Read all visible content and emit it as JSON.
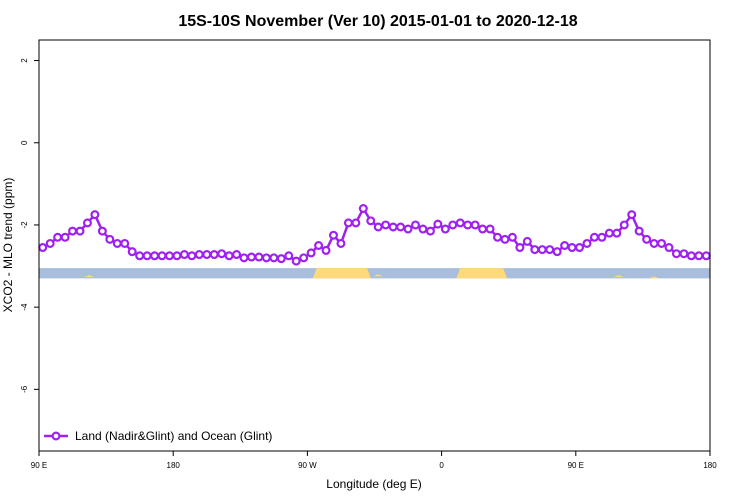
{
  "chart_data": {
    "type": "line",
    "title": "15S-10S November (Ver 10)   2015-01-01 to 2020-12-18",
    "xlabel": "Longitude (deg E)",
    "ylabel": "XCO2 - MLO trend (ppm)",
    "xlim": [
      90,
      450
    ],
    "ylim": [
      -7.5,
      2.5
    ],
    "x_ticks": [
      {
        "value": 90,
        "label": "90 E"
      },
      {
        "value": 162,
        "label": "180"
      },
      {
        "value": 234,
        "label": "90 W"
      },
      {
        "value": 306,
        "label": "0"
      },
      {
        "value": 378,
        "label": "90 E"
      },
      {
        "value": 450,
        "label": "180"
      }
    ],
    "y_ticks": [
      {
        "value": 2,
        "label": "2"
      },
      {
        "value": 0,
        "label": "0"
      },
      {
        "value": -2,
        "label": "-2"
      },
      {
        "value": -4,
        "label": "-4"
      },
      {
        "value": -6,
        "label": "-6"
      }
    ],
    "grid": false,
    "legend_position": "bottom-left",
    "colors": {
      "series": "#a020f0",
      "ocean_band": "#a8bedc",
      "land_band": "#fcd97a"
    },
    "surface_band": {
      "y_top": -3.05,
      "y_bottom": -3.3,
      "land_segments": [
        [
          239,
          266
        ],
        [
          316,
          339
        ]
      ],
      "land_bumps": [
        [
          117,
          -3.22
        ],
        [
          272,
          -3.2
        ],
        [
          401,
          -3.22
        ],
        [
          420,
          -3.25
        ]
      ]
    },
    "series": [
      {
        "name": "Land (Nadir&Glint) and Ocean (Glint)",
        "x": [
          92,
          96,
          100,
          104,
          108,
          112,
          116,
          120,
          124,
          128,
          132,
          136,
          140,
          144,
          148,
          152,
          156,
          160,
          164,
          168,
          172,
          176,
          180,
          184,
          188,
          192,
          196,
          200,
          204,
          208,
          212,
          216,
          220,
          224,
          228,
          232,
          236,
          240,
          244,
          248,
          252,
          256,
          260,
          264,
          268,
          272,
          276,
          280,
          284,
          288,
          292,
          296,
          300,
          304,
          308,
          312,
          316,
          320,
          324,
          328,
          332,
          336,
          340,
          344,
          348,
          352,
          356,
          360,
          364,
          368,
          372,
          376,
          380,
          384,
          388,
          392,
          396,
          400,
          404,
          408,
          412,
          416,
          420,
          424,
          428,
          432,
          436,
          440,
          444,
          448
        ],
        "y": [
          -2.55,
          -2.45,
          -2.3,
          -2.3,
          -2.15,
          -2.15,
          -1.95,
          -1.75,
          -2.15,
          -2.35,
          -2.45,
          -2.45,
          -2.65,
          -2.75,
          -2.75,
          -2.75,
          -2.75,
          -2.75,
          -2.75,
          -2.72,
          -2.75,
          -2.72,
          -2.72,
          -2.72,
          -2.7,
          -2.75,
          -2.72,
          -2.8,
          -2.78,
          -2.78,
          -2.8,
          -2.8,
          -2.82,
          -2.75,
          -2.88,
          -2.8,
          -2.68,
          -2.5,
          -2.62,
          -2.25,
          -2.45,
          -1.95,
          -1.95,
          -1.6,
          -1.9,
          -2.05,
          -2.0,
          -2.05,
          -2.05,
          -2.1,
          -2.0,
          -2.1,
          -2.15,
          -1.98,
          -2.1,
          -2.0,
          -1.95,
          -2.0,
          -2.0,
          -2.1,
          -2.1,
          -2.3,
          -2.35,
          -2.3,
          -2.55,
          -2.4,
          -2.6,
          -2.6,
          -2.6,
          -2.65,
          -2.5,
          -2.55,
          -2.55,
          -2.45,
          -2.3,
          -2.3,
          -2.2,
          -2.2,
          -2.0,
          -1.75,
          -2.15,
          -2.35,
          -2.45,
          -2.45,
          -2.55,
          -2.7,
          -2.7,
          -2.75,
          -2.75,
          -2.75
        ]
      }
    ]
  }
}
